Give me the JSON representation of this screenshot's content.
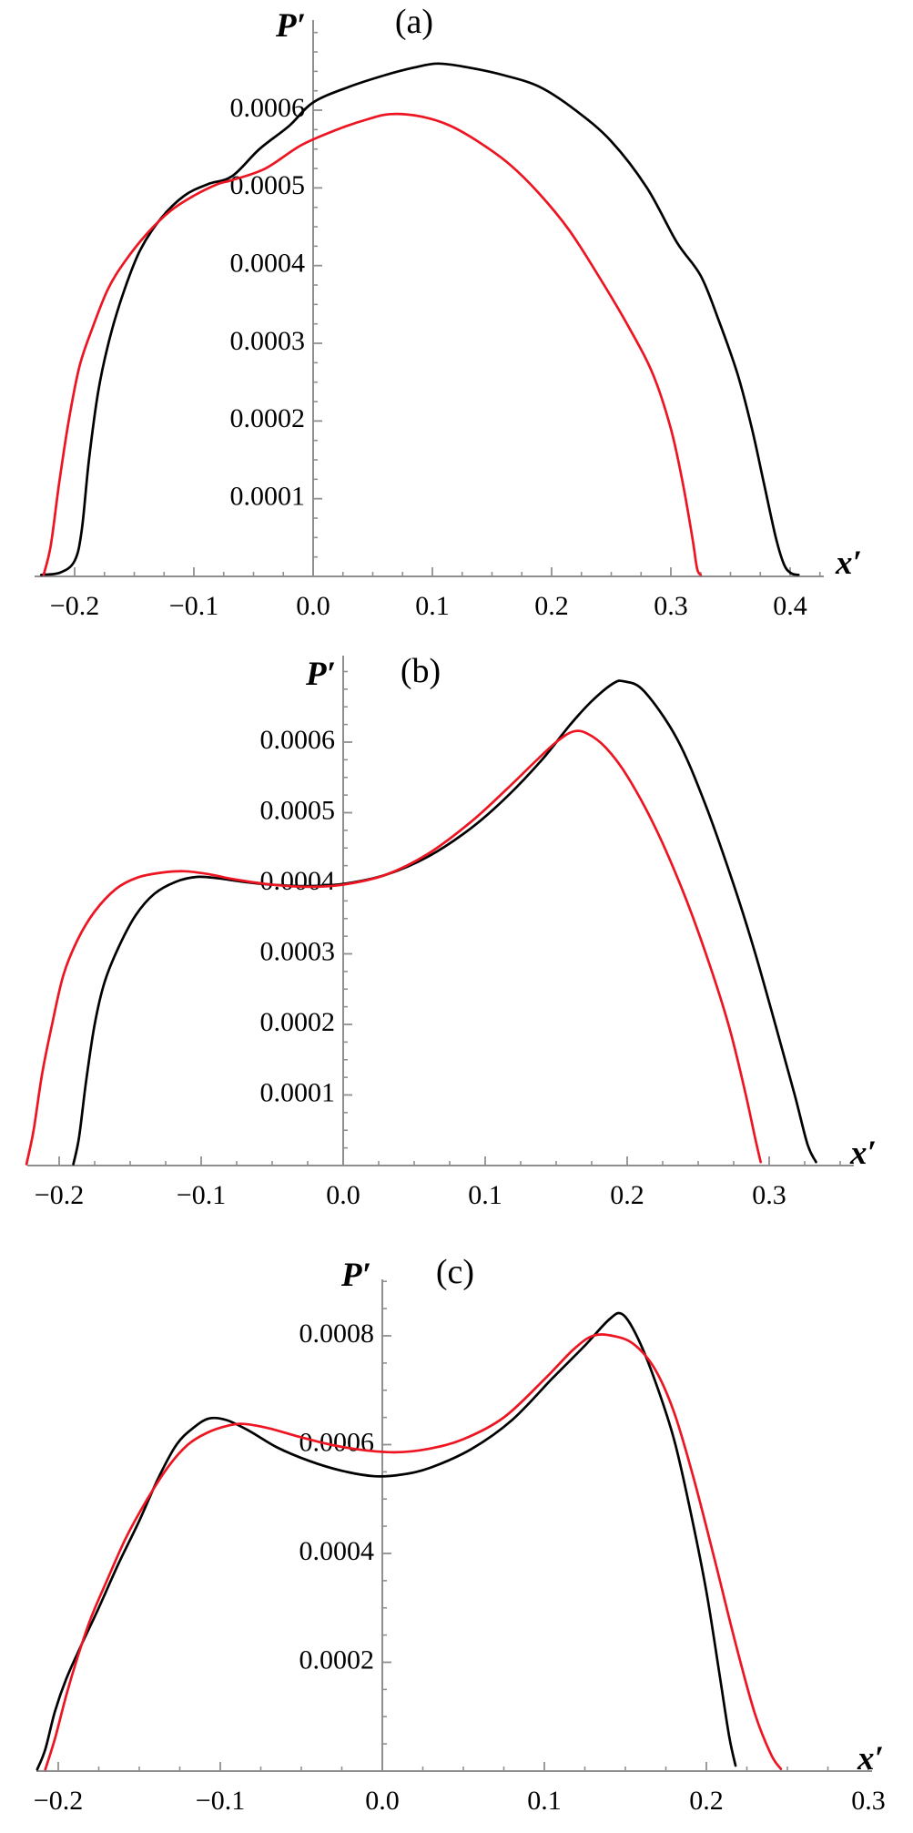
{
  "figure": {
    "background": "#ffffff",
    "axis_color": "#8f8f8f",
    "text_color": "#000000",
    "curve_colors": {
      "black": "#000000",
      "red": "#ec1521"
    }
  },
  "chart_data": [
    {
      "id": "a",
      "type": "line",
      "title": "(a)",
      "xlabel": "x′",
      "ylabel": "P′",
      "xlim": [
        -0.2336,
        0.4282
      ],
      "ylim": [
        0,
        0.00071
      ],
      "grid": false,
      "legend": "none",
      "xticks": [
        -0.2,
        -0.1,
        0.0,
        0.1,
        0.2,
        0.3,
        0.4
      ],
      "xtick_labels": [
        "−0.2",
        "−0.1",
        "0.0",
        "0.1",
        "0.2",
        "0.3",
        "0.4"
      ],
      "xtick_minor_step": 0.025,
      "yticks": [
        0.0001,
        0.0002,
        0.0003,
        0.0004,
        0.0005,
        0.0006
      ],
      "ytick_labels": [
        "0.0001",
        "0.0002",
        "0.0003",
        "0.0004",
        "0.0005",
        "0.0006"
      ],
      "ytick_minor_step": 2.5e-05,
      "series": [
        {
          "name": "black",
          "color": "#000000",
          "points": [
            [
              -0.228,
              2e-06
            ],
            [
              -0.212,
              5e-06
            ],
            [
              -0.2,
              2e-05
            ],
            [
              -0.194,
              6e-05
            ],
            [
              -0.188,
              0.00015
            ],
            [
              -0.18,
              0.00024
            ],
            [
              -0.17,
              0.00031
            ],
            [
              -0.158,
              0.00037
            ],
            [
              -0.145,
              0.00042
            ],
            [
              -0.128,
              0.00046
            ],
            [
              -0.108,
              0.00049
            ],
            [
              -0.088,
              0.000505
            ],
            [
              -0.068,
              0.000515
            ],
            [
              -0.045,
              0.00055
            ],
            [
              -0.02,
              0.00058
            ],
            [
              0.0,
              0.00061
            ],
            [
              0.03,
              0.00063
            ],
            [
              0.06,
              0.000645
            ],
            [
              0.085,
              0.000655
            ],
            [
              0.105,
              0.00066
            ],
            [
              0.13,
              0.000655
            ],
            [
              0.16,
              0.000645
            ],
            [
              0.19,
              0.00063
            ],
            [
              0.22,
              0.0006
            ],
            [
              0.25,
              0.00056
            ],
            [
              0.28,
              0.0005
            ],
            [
              0.305,
              0.00043
            ],
            [
              0.325,
              0.000387
            ],
            [
              0.34,
              0.00033
            ],
            [
              0.356,
              0.00026
            ],
            [
              0.368,
              0.00019
            ],
            [
              0.378,
              0.00012
            ],
            [
              0.388,
              5e-05
            ],
            [
              0.395,
              1.5e-05
            ],
            [
              0.401,
              4e-06
            ],
            [
              0.407,
              2e-06
            ]
          ]
        },
        {
          "name": "red",
          "color": "#ec1521",
          "points": [
            [
              -0.226,
              2e-06
            ],
            [
              -0.22,
              4e-05
            ],
            [
              -0.213,
              0.00012
            ],
            [
              -0.205,
              0.0002
            ],
            [
              -0.196,
              0.00027
            ],
            [
              -0.185,
              0.00032
            ],
            [
              -0.172,
              0.00037
            ],
            [
              -0.158,
              0.000405
            ],
            [
              -0.14,
              0.00044
            ],
            [
              -0.12,
              0.00047
            ],
            [
              -0.1,
              0.00049
            ],
            [
              -0.08,
              0.000505
            ],
            [
              -0.068,
              0.00051
            ],
            [
              -0.04,
              0.000525
            ],
            [
              -0.01,
              0.000555
            ],
            [
              0.02,
              0.000575
            ],
            [
              0.045,
              0.000588
            ],
            [
              0.065,
              0.000595
            ],
            [
              0.09,
              0.000592
            ],
            [
              0.115,
              0.00058
            ],
            [
              0.14,
              0.000558
            ],
            [
              0.165,
              0.00053
            ],
            [
              0.19,
              0.000492
            ],
            [
              0.215,
              0.000445
            ],
            [
              0.24,
              0.000385
            ],
            [
              0.265,
              0.00032
            ],
            [
              0.285,
              0.00026
            ],
            [
              0.3,
              0.00019
            ],
            [
              0.31,
              0.00012
            ],
            [
              0.318,
              5e-05
            ],
            [
              0.322,
              1e-05
            ],
            [
              0.325,
              2e-06
            ]
          ]
        }
      ]
    },
    {
      "id": "b",
      "type": "line",
      "title": "(b)",
      "xlabel": "x′",
      "ylabel": "P′",
      "xlim": [
        -0.2224,
        0.3596
      ],
      "ylim": [
        0,
        0.00072
      ],
      "grid": false,
      "legend": "none",
      "xticks": [
        -0.2,
        -0.1,
        0.0,
        0.1,
        0.2,
        0.3
      ],
      "xtick_labels": [
        "−0.2",
        "−0.1",
        "0.0",
        "0.1",
        "0.2",
        "0.3"
      ],
      "xtick_minor_step": 0.025,
      "yticks": [
        0.0001,
        0.0002,
        0.0003,
        0.0004,
        0.0005,
        0.0006
      ],
      "ytick_labels": [
        "0.0001",
        "0.0002",
        "0.0003",
        "0.0004",
        "0.0005",
        "0.0006"
      ],
      "ytick_minor_step": 2.5e-05,
      "series": [
        {
          "name": "black",
          "color": "#000000",
          "points": [
            [
              -0.19,
              2e-06
            ],
            [
              -0.186,
              4e-05
            ],
            [
              -0.181,
              0.00012
            ],
            [
              -0.175,
              0.0002
            ],
            [
              -0.168,
              0.00026
            ],
            [
              -0.158,
              0.00031
            ],
            [
              -0.146,
              0.000355
            ],
            [
              -0.133,
              0.000385
            ],
            [
              -0.118,
              0.000402
            ],
            [
              -0.103,
              0.000409
            ],
            [
              -0.088,
              0.000407
            ],
            [
              -0.07,
              0.000402
            ],
            [
              -0.05,
              0.000398
            ],
            [
              -0.025,
              0.000396
            ],
            [
              0.0,
              0.000399
            ],
            [
              0.03,
              0.000412
            ],
            [
              0.06,
              0.000438
            ],
            [
              0.09,
              0.000478
            ],
            [
              0.115,
              0.000522
            ],
            [
              0.14,
              0.000575
            ],
            [
              0.16,
              0.000625
            ],
            [
              0.175,
              0.000658
            ],
            [
              0.19,
              0.000683
            ],
            [
              0.198,
              0.000686
            ],
            [
              0.212,
              0.000672
            ],
            [
              0.235,
              0.000605
            ],
            [
              0.255,
              0.000512
            ],
            [
              0.275,
              0.000398
            ],
            [
              0.29,
              0.000302
            ],
            [
              0.305,
              0.000195
            ],
            [
              0.318,
              0.0001
            ],
            [
              0.327,
              3e-05
            ],
            [
              0.333,
              5e-06
            ]
          ]
        },
        {
          "name": "red",
          "color": "#ec1521",
          "points": [
            [
              -0.223,
              2e-06
            ],
            [
              -0.218,
              5e-05
            ],
            [
              -0.212,
              0.00013
            ],
            [
              -0.205,
              0.0002
            ],
            [
              -0.197,
              0.00027
            ],
            [
              -0.187,
              0.00032
            ],
            [
              -0.175,
              0.00036
            ],
            [
              -0.16,
              0.000392
            ],
            [
              -0.145,
              0.000408
            ],
            [
              -0.128,
              0.000415
            ],
            [
              -0.112,
              0.000417
            ],
            [
              -0.095,
              0.000413
            ],
            [
              -0.075,
              0.000405
            ],
            [
              -0.05,
              0.000398
            ],
            [
              -0.025,
              0.000395
            ],
            [
              0.0,
              0.000398
            ],
            [
              0.03,
              0.000412
            ],
            [
              0.06,
              0.000442
            ],
            [
              0.09,
              0.000487
            ],
            [
              0.115,
              0.000533
            ],
            [
              0.135,
              0.000572
            ],
            [
              0.15,
              0.0006
            ],
            [
              0.162,
              0.000615
            ],
            [
              0.172,
              0.000612
            ],
            [
              0.185,
              0.000592
            ],
            [
              0.2,
              0.000552
            ],
            [
              0.22,
              0.000478
            ],
            [
              0.24,
              0.000385
            ],
            [
              0.258,
              0.000285
            ],
            [
              0.272,
              0.000195
            ],
            [
              0.283,
              0.000105
            ],
            [
              0.29,
              4e-05
            ],
            [
              0.294,
              5e-06
            ]
          ]
        }
      ]
    },
    {
      "id": "c",
      "type": "line",
      "title": "(c)",
      "xlabel": "x′",
      "ylabel": "P′",
      "xlim": [
        -0.2135,
        0.3022
      ],
      "ylim": [
        0,
        0.0009
      ],
      "grid": false,
      "legend": "none",
      "xticks": [
        -0.2,
        -0.1,
        0.0,
        0.1,
        0.2,
        0.3
      ],
      "xtick_labels": [
        "−0.2",
        "−0.1",
        "0.0",
        "0.1",
        "0.2",
        "0.3"
      ],
      "xtick_minor_step": 0.025,
      "yticks": [
        0.0002,
        0.0004,
        0.0006,
        0.0008
      ],
      "ytick_labels": [
        "0.0002",
        "0.0004",
        "0.0006",
        "0.0008"
      ],
      "ytick_minor_step": 5e-05,
      "series": [
        {
          "name": "black",
          "color": "#000000",
          "points": [
            [
              -0.213,
              3e-06
            ],
            [
              -0.208,
              4e-05
            ],
            [
              -0.202,
              0.00011
            ],
            [
              -0.195,
              0.00017
            ],
            [
              -0.186,
              0.00023
            ],
            [
              -0.175,
              0.0003
            ],
            [
              -0.163,
              0.00038
            ],
            [
              -0.15,
              0.00046
            ],
            [
              -0.138,
              0.00054
            ],
            [
              -0.127,
              0.0006
            ],
            [
              -0.117,
              0.00063
            ],
            [
              -0.107,
              0.000648
            ],
            [
              -0.096,
              0.000645
            ],
            [
              -0.082,
              0.000625
            ],
            [
              -0.065,
              0.000595
            ],
            [
              -0.045,
              0.00057
            ],
            [
              -0.025,
              0.000552
            ],
            [
              -0.005,
              0.000542
            ],
            [
              0.012,
              0.000545
            ],
            [
              0.03,
              0.000558
            ],
            [
              0.055,
              0.000592
            ],
            [
              0.08,
              0.000645
            ],
            [
              0.105,
              0.000722
            ],
            [
              0.125,
              0.000782
            ],
            [
              0.14,
              0.00083
            ],
            [
              0.148,
              0.00084
            ],
            [
              0.157,
              0.0008
            ],
            [
              0.168,
              0.00072
            ],
            [
              0.18,
              0.00061
            ],
            [
              0.19,
              0.00048
            ],
            [
              0.2,
              0.00033
            ],
            [
              0.208,
              0.00018
            ],
            [
              0.214,
              6.5e-05
            ],
            [
              0.218,
              1e-05
            ]
          ]
        },
        {
          "name": "red",
          "color": "#ec1521",
          "points": [
            [
              -0.208,
              3e-06
            ],
            [
              -0.202,
              6e-05
            ],
            [
              -0.195,
              0.00014
            ],
            [
              -0.188,
              0.00021
            ],
            [
              -0.18,
              0.00028
            ],
            [
              -0.17,
              0.00035
            ],
            [
              -0.158,
              0.00043
            ],
            [
              -0.145,
              0.0005
            ],
            [
              -0.132,
              0.00056
            ],
            [
              -0.12,
              0.0006
            ],
            [
              -0.108,
              0.000622
            ],
            [
              -0.095,
              0.000635
            ],
            [
              -0.085,
              0.000638
            ],
            [
              -0.07,
              0.00063
            ],
            [
              -0.052,
              0.000615
            ],
            [
              -0.032,
              0.0006
            ],
            [
              -0.012,
              0.00059
            ],
            [
              0.008,
              0.000586
            ],
            [
              0.028,
              0.000592
            ],
            [
              0.05,
              0.00061
            ],
            [
              0.075,
              0.00065
            ],
            [
              0.1,
              0.00072
            ],
            [
              0.118,
              0.000775
            ],
            [
              0.13,
              0.0008
            ],
            [
              0.142,
              0.0008
            ],
            [
              0.155,
              0.000785
            ],
            [
              0.168,
              0.00074
            ],
            [
              0.18,
              0.00066
            ],
            [
              0.192,
              0.00054
            ],
            [
              0.205,
              0.00039
            ],
            [
              0.218,
              0.000235
            ],
            [
              0.23,
              0.000105
            ],
            [
              0.24,
              3e-05
            ],
            [
              0.246,
              4e-06
            ]
          ]
        }
      ]
    }
  ]
}
